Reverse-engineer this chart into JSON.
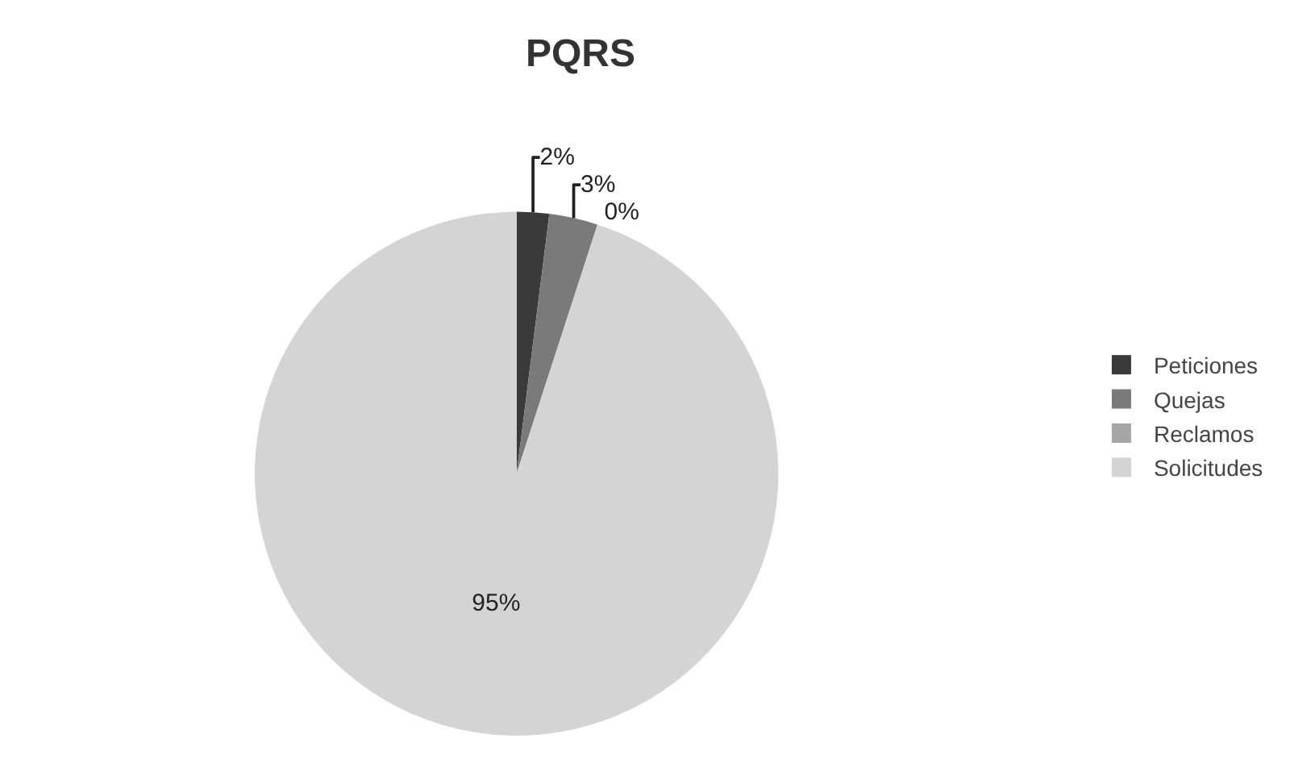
{
  "chart_data": {
    "type": "pie",
    "title": "PQRS",
    "categories": [
      "Peticiones",
      "Quejas",
      "Reclamos",
      "Solicitudes"
    ],
    "values": [
      2,
      3,
      0,
      95
    ],
    "value_labels": [
      "2%",
      "3%",
      "0%",
      "95%"
    ],
    "colors": [
      "#3a3a3a",
      "#7a7a7a",
      "#a6a6a6",
      "#d4d4d4"
    ],
    "legend": "right"
  }
}
